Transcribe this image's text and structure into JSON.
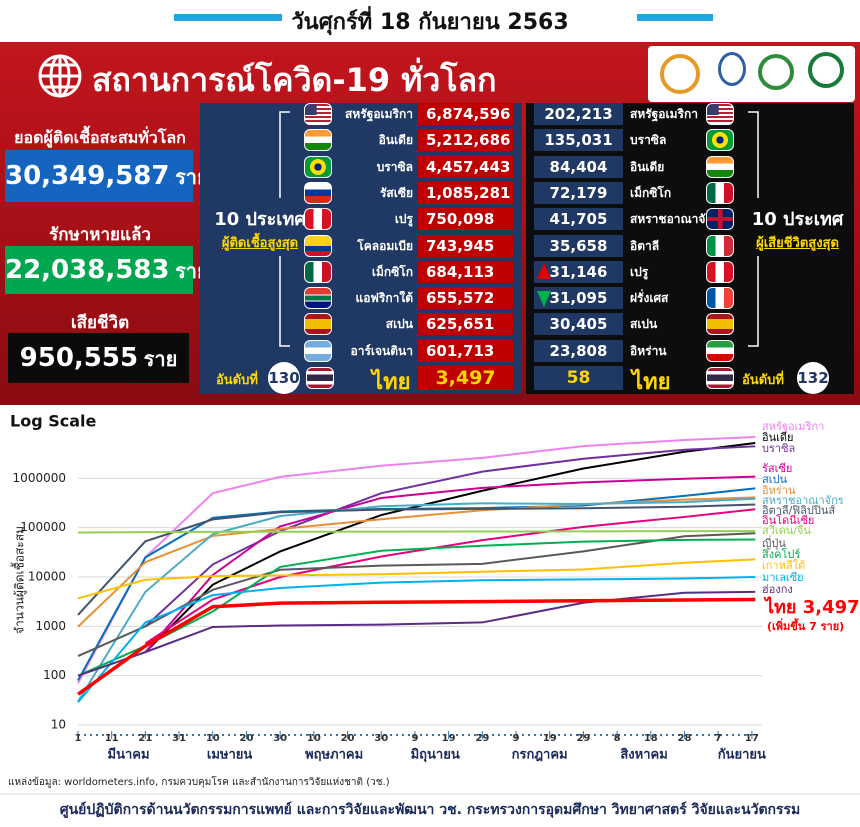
{
  "header": {
    "date": "วันศุกร์ที่ 18 กันยายน 2563",
    "title": "สถานการณ์โควิด-19 ทั่วโลก"
  },
  "summary": {
    "unit": "ราย",
    "total_label": "ยอดผู้ติดเชื้อสะสมทั่วโลก",
    "total": "30,349,587",
    "recovered_label": "รักษาหายแล้ว",
    "recovered": "22,038,583",
    "deaths_label": "เสียชีวิต",
    "deaths": "950,555"
  },
  "infections": {
    "heading": "10 ประเทศ",
    "subheading": "ผู้ติดเชื้อสูงสุด",
    "rows": [
      {
        "country": "สหรัฐอเมริกา",
        "value": "6,874,596"
      },
      {
        "country": "อินเดีย",
        "value": "5,212,686"
      },
      {
        "country": "บราซิล",
        "value": "4,457,443"
      },
      {
        "country": "รัสเซีย",
        "value": "1,085,281"
      },
      {
        "country": "เปรู",
        "value": "750,098"
      },
      {
        "country": "โคลอมเบีย",
        "value": "743,945"
      },
      {
        "country": "เม็กซิโก",
        "value": "684,113"
      },
      {
        "country": "แอฟริกาใต้",
        "value": "655,572"
      },
      {
        "country": "สเปน",
        "value": "625,651"
      },
      {
        "country": "อาร์เจนตินา",
        "value": "601,713"
      }
    ],
    "thailand": {
      "rank_label": "อันดับที่",
      "rank": "130",
      "country": "ไทย",
      "value": "3,497"
    }
  },
  "deaths": {
    "heading": "10 ประเทศ",
    "subheading": "ผู้เสียชีวิตสูงสุด",
    "rows": [
      {
        "country": "สหรัฐอเมริกา",
        "value": "202,213"
      },
      {
        "country": "บราซิล",
        "value": "135,031"
      },
      {
        "country": "อินเดีย",
        "value": "84,404"
      },
      {
        "country": "เม็กซิโก",
        "value": "72,179"
      },
      {
        "country": "สหราชอาณาจักร",
        "value": "41,705"
      },
      {
        "country": "อิตาลี",
        "value": "35,658"
      },
      {
        "country": "เปรู",
        "value": "31,146"
      },
      {
        "country": "ฝรั่งเศส",
        "value": "31,095"
      },
      {
        "country": "สเปน",
        "value": "30,405"
      },
      {
        "country": "อิหร่าน",
        "value": "23,808"
      }
    ],
    "thailand": {
      "rank_label": "อันดับที่",
      "rank": "132",
      "country": "ไทย",
      "value": "58"
    }
  },
  "chart_data": {
    "type": "line",
    "title": "Log Scale",
    "y_label": "จำนวนผู้ติดเชื้อสะสม",
    "log_scale": true,
    "grid": true,
    "x": [
      0,
      20,
      40,
      60,
      90,
      120,
      150,
      180,
      201
    ],
    "xlim": [
      0,
      203
    ],
    "xticks": [
      {
        "value": 0,
        "label": "1"
      },
      {
        "value": 10,
        "label": "11"
      },
      {
        "value": 20,
        "label": "21"
      },
      {
        "value": 30,
        "label": "31"
      },
      {
        "value": 40,
        "label": "10"
      },
      {
        "value": 50,
        "label": "20"
      },
      {
        "value": 60,
        "label": "30"
      },
      {
        "value": 70,
        "label": "10"
      },
      {
        "value": 80,
        "label": "20"
      },
      {
        "value": 90,
        "label": "30"
      },
      {
        "value": 100,
        "label": "9"
      },
      {
        "value": 110,
        "label": "19"
      },
      {
        "value": 120,
        "label": "29"
      },
      {
        "value": 130,
        "label": "9"
      },
      {
        "value": 140,
        "label": "19"
      },
      {
        "value": 150,
        "label": "29"
      },
      {
        "value": 160,
        "label": "8"
      },
      {
        "value": 170,
        "label": "18"
      },
      {
        "value": 180,
        "label": "28"
      },
      {
        "value": 190,
        "label": "7"
      },
      {
        "value": 200,
        "label": "17"
      }
    ],
    "month_ticks": [
      {
        "value": 15,
        "label": "มีนาคม"
      },
      {
        "value": 45,
        "label": "เมษายน"
      },
      {
        "value": 76,
        "label": "พฤษภาคม"
      },
      {
        "value": 106,
        "label": "มิถุนายน"
      },
      {
        "value": 137,
        "label": "กรกฎาคม"
      },
      {
        "value": 168,
        "label": "สิงหาคม"
      },
      {
        "value": 197,
        "label": "กันยายน"
      }
    ],
    "ylim": [
      10,
      10000000
    ],
    "yticks": [
      10,
      100,
      1000,
      10000,
      100000,
      1000000
    ],
    "series": [
      {
        "name": "สหรัฐอเมริกา",
        "color": "#ee82ee",
        "values": [
          70,
          25000,
          500000,
          1070000,
          1800000,
          2600000,
          4500000,
          6000000,
          6874596
        ]
      },
      {
        "name": "อินเดีย",
        "color": "#000000",
        "values": [
          null,
          300,
          7000,
          33000,
          180000,
          560000,
          1580000,
          3450000,
          5212686
        ]
      },
      {
        "name": "บราซิล",
        "color": "#7030a0",
        "values": [
          null,
          1000,
          18000,
          85000,
          500000,
          1370000,
          2500000,
          3800000,
          4457443
        ]
      },
      {
        "name": "รัสเซีย",
        "color": "#cc0099",
        "values": [
          null,
          300,
          11000,
          106000,
          400000,
          640000,
          830000,
          980000,
          1085281
        ]
      },
      {
        "name": "สเปน",
        "color": "#0070c0",
        "values": [
          80,
          25000,
          158000,
          213000,
          239000,
          249000,
          282000,
          440000,
          625651
        ]
      },
      {
        "name": "อิหร่าน",
        "color": "#e69138",
        "values": [
          980,
          20000,
          68000,
          94000,
          148000,
          225000,
          298000,
          370000,
          410000
        ]
      },
      {
        "name": "สหราชอาณาจักร",
        "color": "#4bacc6",
        "values": [
          30,
          5000,
          74000,
          172000,
          272000,
          312000,
          302000,
          330000,
          385000
        ]
      },
      {
        "name": "อิตาลี/ฟิลิปปินส์",
        "color": "#44546a",
        "values": [
          1700,
          53000,
          147000,
          205000,
          232000,
          240000,
          247000,
          265000,
          294000
        ]
      },
      {
        "name": "อินโดนีเซีย",
        "color": "#e4007f",
        "values": [
          null,
          450,
          3500,
          10000,
          26000,
          56000,
          104000,
          165000,
          236000
        ]
      },
      {
        "name": "สวีเดน/จีน",
        "color": "#92d050",
        "values": [
          80000,
          81000,
          82000,
          82800,
          83000,
          83500,
          84000,
          85000,
          85200
        ]
      },
      {
        "name": "ญี่ปุ่น",
        "color": "#595959",
        "values": [
          250,
          1000,
          5500,
          14000,
          17000,
          18500,
          33000,
          67000,
          77000
        ]
      },
      {
        "name": "สิงคโปร์",
        "color": "#00b050",
        "values": [
          100,
          400,
          2000,
          16000,
          34000,
          43000,
          52000,
          56700,
          57500
        ]
      },
      {
        "name": "เกาหลีใต้",
        "color": "#ffc000",
        "values": [
          3700,
          8800,
          10400,
          10800,
          11400,
          12800,
          14200,
          19400,
          22700
        ]
      },
      {
        "name": "มาเลเซีย",
        "color": "#00b0f0",
        "values": [
          29,
          1200,
          4300,
          6000,
          7700,
          8600,
          8950,
          9300,
          10000
        ]
      },
      {
        "name": "ฮ่องกง",
        "color": "#5b2c83",
        "values": [
          100,
          300,
          970,
          1040,
          1080,
          1200,
          3000,
          4800,
          5000
        ]
      },
      {
        "name": "ไทย",
        "color": "#ff0000",
        "values": [
          42,
          400,
          2500,
          2950,
          3080,
          3170,
          3300,
          3420,
          3497
        ],
        "value_labels": [
          null,
          null,
          null,
          null,
          null,
          null,
          null,
          null,
          "3,497"
        ]
      }
    ],
    "annotation": "(เพิ่มขึ้น 7 ราย)"
  },
  "footer": {
    "source": "แหล่งข้อมูล: worldometers.info, กรมควบคุมโรค และสำนักงานการวิจัยแห่งชาติ (วช.)",
    "organization": "ศูนย์ปฏิบัติการด้านนวัตกรรมการแพทย์ และการวิจัยและพัฒนา วช. กระทรวงการอุดมศึกษา วิทยาศาสตร์ วิจัยและนวัตกรรม"
  }
}
